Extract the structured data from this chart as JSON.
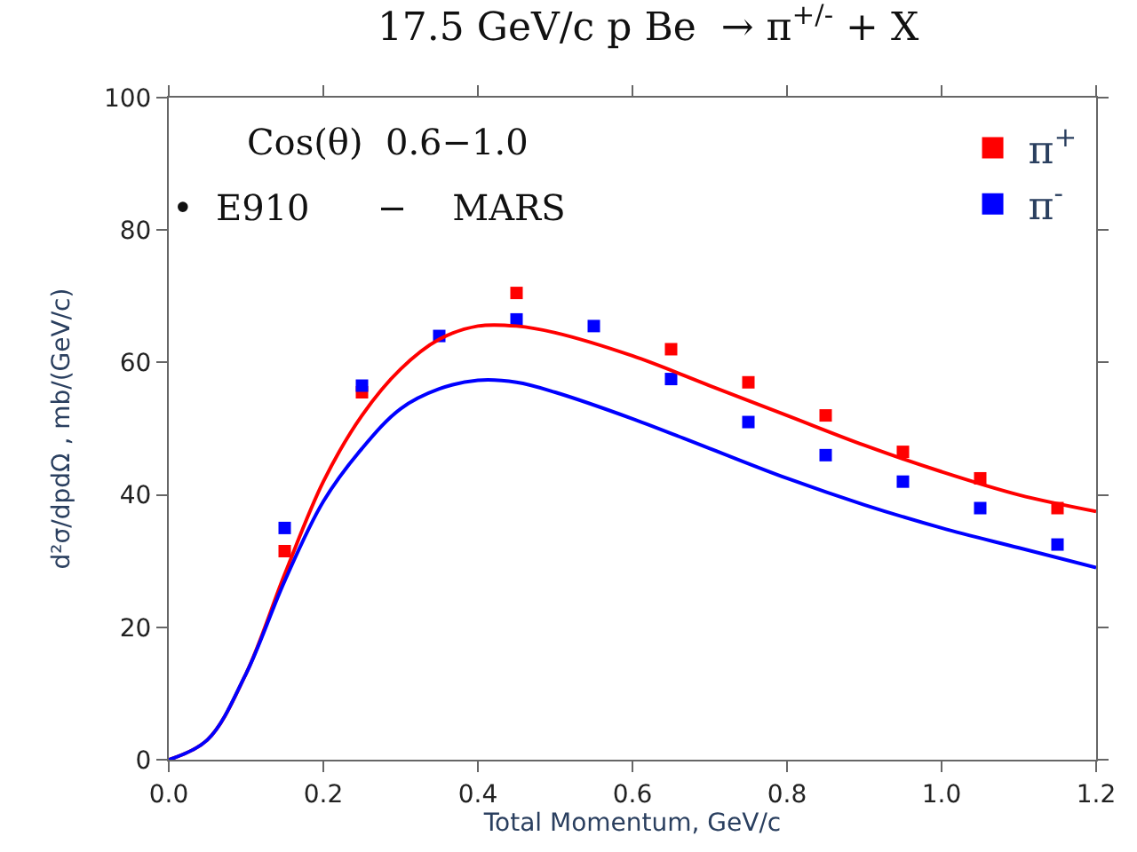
{
  "chart_data": {
    "type": "scatter",
    "title": "17.5 GeV/c p Be  → π$^{+/-}$ + X",
    "xlabel": "Total Momentum, GeV/c",
    "ylabel": "d²σ/dpdΩ , mb/(GeV/c)",
    "x": [
      0.15,
      0.25,
      0.35,
      0.45,
      0.55,
      0.65,
      0.75,
      0.85,
      0.95,
      1.05,
      1.15
    ],
    "series": [
      {
        "name": "π$^{+}$",
        "color": "#ff0000",
        "marker": "square",
        "values": [
          31.5,
          55.5,
          null,
          70.5,
          null,
          62,
          57,
          52,
          46.5,
          42.5,
          38
        ]
      },
      {
        "name": "π$^{-}$",
        "color": "#0000ff",
        "marker": "square",
        "values": [
          35,
          56.5,
          64,
          66.5,
          65.5,
          57.5,
          51,
          46,
          42,
          38,
          32.5
        ]
      },
      {
        "type": "line",
        "color": "#ff0000",
        "x": [
          0,
          0.05,
          0.1,
          0.15,
          0.2,
          0.25,
          0.3,
          0.35,
          0.4,
          0.45,
          0.5,
          0.6,
          0.7,
          0.8,
          0.9,
          1.0,
          1.1,
          1.2
        ],
        "values": [
          0,
          3,
          13,
          28,
          42,
          52,
          59,
          63.5,
          65.5,
          65.5,
          64.5,
          61,
          56.5,
          52,
          47.5,
          43.5,
          40,
          37.5
        ]
      },
      {
        "type": "line",
        "color": "#0000ff",
        "x": [
          0,
          0.05,
          0.1,
          0.15,
          0.2,
          0.25,
          0.3,
          0.35,
          0.4,
          0.45,
          0.5,
          0.6,
          0.7,
          0.8,
          0.9,
          1.0,
          1.1,
          1.2
        ],
        "values": [
          0,
          3,
          13,
          27,
          39,
          47,
          53,
          56,
          57.3,
          57,
          55.5,
          51.5,
          47,
          42.5,
          38.5,
          35,
          32,
          29
        ]
      }
    ],
    "annotations": [
      "Cos(θ)  0.6−1.0",
      "•  E910      −    MARS"
    ],
    "xlim": [
      0,
      1.2
    ],
    "xticks": [
      {
        "value": 0,
        "label": "0.0"
      },
      0.2,
      0.4,
      0.6,
      0.8,
      {
        "value": 1,
        "label": "1.0"
      },
      1.2
    ],
    "ylim": [
      0,
      100
    ],
    "yticks": [
      0,
      20,
      40,
      60,
      80,
      100
    ],
    "marker": "none",
    "legend": "top right"
  }
}
